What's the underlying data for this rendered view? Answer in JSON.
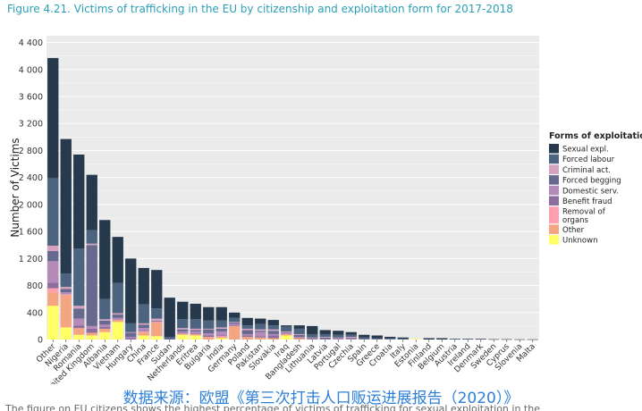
{
  "figure": {
    "title": "Figure 4.21. Victims of trafficking in the EU by citizenship and exploitation form for 2017-2018",
    "source_note": "数据来源：欧盟《第三次打击人口贩运进展报告（2020）》",
    "cutoff_text": "The figure on EU citizens shows the highest percentage of victims of trafficking for sexual exploitation in the"
  },
  "chart_data": {
    "type": "bar",
    "stacked": true,
    "title": "",
    "xlabel": "",
    "ylabel": "Number of Victims",
    "ylim": [
      0,
      4500
    ],
    "yticks": [
      0,
      400,
      800,
      1200,
      1600,
      2000,
      2400,
      2800,
      3200,
      3600,
      4000,
      4400
    ],
    "ytick_labels": [
      "0",
      "400",
      "800",
      "1 200",
      "1 600",
      "2 000",
      "2 400",
      "2 800",
      "3 200",
      "3 600",
      "4 000",
      "4 400"
    ],
    "grid": true,
    "legend": {
      "title": "Forms of exploitation",
      "position": "right"
    },
    "categories": [
      "Other",
      "Nigeria",
      "Romania",
      "United Kingdom",
      "Albania",
      "Vietnam",
      "Hungary",
      "China",
      "France",
      "Sudan",
      "Netherlands",
      "Eritrea",
      "Bulgaria",
      "India",
      "Germany",
      "Poland",
      "Pakistan",
      "Slovakia",
      "Iraq",
      "Bangladesh",
      "Lithuania",
      "Latvia",
      "Portugal",
      "Czechia",
      "Spain",
      "Greece",
      "Croatia",
      "Italy",
      "Estonia",
      "Finland",
      "Belgium",
      "Austria",
      "Ireland",
      "Denmark",
      "Sweden",
      "Cyprus",
      "Slovenia",
      "Malta"
    ],
    "series": [
      {
        "name": "Unknown",
        "color": "#ffff66",
        "values": [
          500,
          180,
          70,
          60,
          110,
          260,
          0,
          60,
          50,
          0,
          70,
          60,
          0,
          20,
          0,
          0,
          0,
          0,
          60,
          0,
          0,
          0,
          0,
          0,
          0,
          0,
          0,
          0,
          10,
          0,
          0,
          0,
          0,
          0,
          0,
          0,
          0,
          0
        ]
      },
      {
        "name": "Other",
        "color": "#f4a582",
        "values": [
          200,
          480,
          100,
          40,
          50,
          30,
          0,
          50,
          200,
          0,
          20,
          20,
          40,
          20,
          200,
          40,
          30,
          20,
          20,
          20,
          0,
          0,
          0,
          0,
          0,
          0,
          0,
          0,
          0,
          0,
          0,
          0,
          0,
          0,
          0,
          0,
          0,
          0
        ]
      },
      {
        "name": "Removal of organs",
        "color": "#ff9fb0",
        "values": [
          60,
          10,
          0,
          0,
          0,
          0,
          0,
          10,
          10,
          0,
          0,
          0,
          0,
          10,
          0,
          0,
          0,
          0,
          0,
          0,
          0,
          0,
          0,
          0,
          0,
          0,
          0,
          0,
          0,
          0,
          0,
          0,
          0,
          0,
          0,
          0,
          0,
          0
        ]
      },
      {
        "name": "Benefit fraud",
        "color": "#8c6d9e",
        "values": [
          80,
          0,
          40,
          60,
          30,
          0,
          20,
          10,
          0,
          0,
          10,
          10,
          20,
          10,
          10,
          20,
          20,
          40,
          0,
          10,
          10,
          10,
          0,
          10,
          0,
          0,
          0,
          0,
          0,
          0,
          0,
          0,
          0,
          0,
          0,
          0,
          0,
          0
        ]
      },
      {
        "name": "Domestic serv.",
        "color": "#b48bb8",
        "values": [
          320,
          30,
          100,
          40,
          30,
          30,
          20,
          40,
          10,
          0,
          20,
          30,
          30,
          60,
          20,
          20,
          60,
          20,
          20,
          10,
          0,
          0,
          10,
          10,
          0,
          0,
          0,
          0,
          0,
          0,
          0,
          0,
          0,
          0,
          0,
          0,
          0,
          0
        ]
      },
      {
        "name": "Forced begging",
        "color": "#68698f",
        "values": [
          150,
          50,
          150,
          1200,
          60,
          50,
          60,
          50,
          10,
          20,
          30,
          20,
          60,
          40,
          20,
          60,
          20,
          50,
          10,
          30,
          10,
          20,
          10,
          10,
          10,
          10,
          10,
          0,
          0,
          0,
          0,
          0,
          0,
          0,
          0,
          0,
          0,
          0
        ]
      },
      {
        "name": "Criminal act.",
        "color": "#d7a1c0",
        "values": [
          80,
          30,
          40,
          20,
          20,
          20,
          10,
          20,
          30,
          0,
          20,
          20,
          10,
          20,
          10,
          20,
          20,
          20,
          10,
          10,
          10,
          10,
          10,
          10,
          0,
          0,
          0,
          0,
          0,
          0,
          0,
          0,
          0,
          0,
          0,
          0,
          0,
          0
        ]
      },
      {
        "name": "Forced labour",
        "color": "#4d6480",
        "values": [
          1000,
          200,
          850,
          200,
          300,
          450,
          130,
          280,
          150,
          20,
          130,
          140,
          120,
          100,
          60,
          50,
          80,
          60,
          70,
          80,
          50,
          40,
          40,
          30,
          20,
          10,
          10,
          10,
          0,
          0,
          0,
          0,
          0,
          0,
          0,
          0,
          0,
          0
        ]
      },
      {
        "name": "Sexual expl.",
        "color": "#26394d",
        "values": [
          1780,
          1990,
          1390,
          820,
          1170,
          680,
          960,
          540,
          570,
          580,
          260,
          230,
          200,
          200,
          80,
          110,
          80,
          80,
          20,
          50,
          120,
          60,
          60,
          40,
          40,
          40,
          20,
          20,
          0,
          20,
          20,
          10,
          10,
          10,
          5,
          5,
          3,
          3
        ]
      }
    ]
  }
}
